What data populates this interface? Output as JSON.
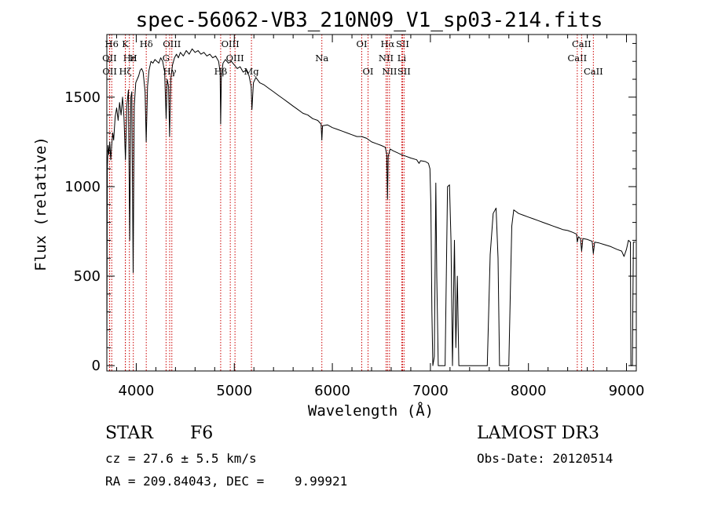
{
  "chart_data": {
    "type": "line",
    "title": "spec-56062-VB3_210N09_V1_sp03-214.fits",
    "xlabel": "Wavelength (Å)",
    "ylabel": "Flux (relative)",
    "xlim": [
      3700,
      9100
    ],
    "ylim": [
      -30,
      1850
    ],
    "x_ticks": [
      4000,
      5000,
      6000,
      7000,
      8000,
      9000
    ],
    "y_ticks": [
      0,
      500,
      1000,
      1500
    ],
    "series": [
      {
        "name": "flux",
        "color": "#000000",
        "points": [
          [
            3700,
            0
          ],
          [
            3705,
            1100
          ],
          [
            3712,
            1230
          ],
          [
            3720,
            1180
          ],
          [
            3730,
            1250
          ],
          [
            3740,
            1150
          ],
          [
            3750,
            1230
          ],
          [
            3760,
            1300
          ],
          [
            3770,
            1260
          ],
          [
            3785,
            1390
          ],
          [
            3800,
            1440
          ],
          [
            3815,
            1370
          ],
          [
            3830,
            1470
          ],
          [
            3845,
            1400
          ],
          [
            3860,
            1500
          ],
          [
            3875,
            1390
          ],
          [
            3890,
            1150
          ],
          [
            3905,
            1460
          ],
          [
            3920,
            1540
          ],
          [
            3933,
            700
          ],
          [
            3945,
            1500
          ],
          [
            3955,
            1530
          ],
          [
            3968,
            520
          ],
          [
            3980,
            1450
          ],
          [
            3995,
            1580
          ],
          [
            4010,
            1600
          ],
          [
            4025,
            1620
          ],
          [
            4040,
            1650
          ],
          [
            4055,
            1660
          ],
          [
            4070,
            1640
          ],
          [
            4090,
            1530
          ],
          [
            4101,
            1250
          ],
          [
            4115,
            1560
          ],
          [
            4130,
            1650
          ],
          [
            4150,
            1700
          ],
          [
            4170,
            1690
          ],
          [
            4190,
            1710
          ],
          [
            4210,
            1700
          ],
          [
            4230,
            1690
          ],
          [
            4250,
            1720
          ],
          [
            4270,
            1700
          ],
          [
            4290,
            1640
          ],
          [
            4305,
            1380
          ],
          [
            4315,
            1600
          ],
          [
            4330,
            1560
          ],
          [
            4340,
            1280
          ],
          [
            4352,
            1600
          ],
          [
            4370,
            1680
          ],
          [
            4390,
            1720
          ],
          [
            4410,
            1740
          ],
          [
            4430,
            1720
          ],
          [
            4450,
            1750
          ],
          [
            4480,
            1730
          ],
          [
            4510,
            1760
          ],
          [
            4540,
            1740
          ],
          [
            4570,
            1770
          ],
          [
            4600,
            1750
          ],
          [
            4630,
            1760
          ],
          [
            4660,
            1740
          ],
          [
            4690,
            1750
          ],
          [
            4720,
            1730
          ],
          [
            4750,
            1740
          ],
          [
            4780,
            1720
          ],
          [
            4810,
            1730
          ],
          [
            4840,
            1700
          ],
          [
            4855,
            1640
          ],
          [
            4861,
            1350
          ],
          [
            4868,
            1620
          ],
          [
            4885,
            1690
          ],
          [
            4910,
            1710
          ],
          [
            4940,
            1690
          ],
          [
            4970,
            1700
          ],
          [
            5000,
            1680
          ],
          [
            5030,
            1660
          ],
          [
            5060,
            1670
          ],
          [
            5090,
            1640
          ],
          [
            5120,
            1650
          ],
          [
            5150,
            1620
          ],
          [
            5172,
            1560
          ],
          [
            5180,
            1430
          ],
          [
            5195,
            1580
          ],
          [
            5220,
            1610
          ],
          [
            5260,
            1580
          ],
          [
            5300,
            1570
          ],
          [
            5350,
            1550
          ],
          [
            5400,
            1530
          ],
          [
            5450,
            1510
          ],
          [
            5500,
            1490
          ],
          [
            5550,
            1470
          ],
          [
            5600,
            1450
          ],
          [
            5650,
            1430
          ],
          [
            5700,
            1410
          ],
          [
            5750,
            1400
          ],
          [
            5800,
            1380
          ],
          [
            5850,
            1370
          ],
          [
            5885,
            1350
          ],
          [
            5893,
            1260
          ],
          [
            5900,
            1340
          ],
          [
            5950,
            1345
          ],
          [
            6000,
            1330
          ],
          [
            6050,
            1320
          ],
          [
            6100,
            1310
          ],
          [
            6150,
            1300
          ],
          [
            6200,
            1290
          ],
          [
            6250,
            1280
          ],
          [
            6300,
            1280
          ],
          [
            6350,
            1270
          ],
          [
            6400,
            1250
          ],
          [
            6450,
            1240
          ],
          [
            6500,
            1230
          ],
          [
            6540,
            1220
          ],
          [
            6555,
            1180
          ],
          [
            6563,
            930
          ],
          [
            6570,
            1170
          ],
          [
            6590,
            1210
          ],
          [
            6620,
            1200
          ],
          [
            6660,
            1190
          ],
          [
            6700,
            1180
          ],
          [
            6750,
            1170
          ],
          [
            6800,
            1160
          ],
          [
            6860,
            1150
          ],
          [
            6885,
            1130
          ],
          [
            6900,
            1145
          ],
          [
            6950,
            1140
          ],
          [
            6980,
            1130
          ],
          [
            6995,
            1100
          ],
          [
            7005,
            900
          ],
          [
            7015,
            300
          ],
          [
            7025,
            0
          ],
          [
            7040,
            50
          ],
          [
            7055,
            1020
          ],
          [
            7065,
            500
          ],
          [
            7080,
            0
          ],
          [
            7150,
            0
          ],
          [
            7175,
            1000
          ],
          [
            7195,
            1010
          ],
          [
            7210,
            700
          ],
          [
            7225,
            0
          ],
          [
            7245,
            700
          ],
          [
            7260,
            100
          ],
          [
            7275,
            500
          ],
          [
            7290,
            0
          ],
          [
            7300,
            0
          ],
          [
            7580,
            0
          ],
          [
            7610,
            620
          ],
          [
            7640,
            850
          ],
          [
            7670,
            880
          ],
          [
            7690,
            600
          ],
          [
            7705,
            0
          ],
          [
            7800,
            0
          ],
          [
            7815,
            400
          ],
          [
            7830,
            780
          ],
          [
            7850,
            870
          ],
          [
            7900,
            850
          ],
          [
            7950,
            840
          ],
          [
            8000,
            830
          ],
          [
            8050,
            820
          ],
          [
            8100,
            810
          ],
          [
            8150,
            800
          ],
          [
            8200,
            790
          ],
          [
            8250,
            780
          ],
          [
            8300,
            770
          ],
          [
            8350,
            760
          ],
          [
            8400,
            755
          ],
          [
            8450,
            745
          ],
          [
            8490,
            735
          ],
          [
            8498,
            690
          ],
          [
            8510,
            720
          ],
          [
            8530,
            710
          ],
          [
            8542,
            640
          ],
          [
            8555,
            710
          ],
          [
            8600,
            705
          ],
          [
            8650,
            695
          ],
          [
            8662,
            625
          ],
          [
            8675,
            690
          ],
          [
            8720,
            685
          ],
          [
            8780,
            675
          ],
          [
            8840,
            665
          ],
          [
            8900,
            650
          ],
          [
            8950,
            640
          ],
          [
            8975,
            610
          ],
          [
            9000,
            650
          ],
          [
            9020,
            700
          ],
          [
            9040,
            690
          ],
          [
            9045,
            0
          ],
          [
            9060,
            0
          ],
          [
            9070,
            690
          ],
          [
            9090,
            690
          ]
        ]
      }
    ],
    "line_markers": [
      {
        "name": "H6",
        "x": 3750,
        "row": 1
      },
      {
        "name": "OII",
        "x": 3727,
        "row": 2
      },
      {
        "name": "OII",
        "x": 3729,
        "row": 3
      },
      {
        "name": "K",
        "x": 3889,
        "row": 1
      },
      {
        "name": "H",
        "x": 3970,
        "row": 2
      },
      {
        "name": "Hε",
        "x": 3930,
        "row": 2
      },
      {
        "name": "Hζ",
        "x": 3889,
        "row": 3
      },
      {
        "name": "Hδ",
        "x": 4102,
        "row": 1
      },
      {
        "name": "G",
        "x": 4304,
        "row": 2
      },
      {
        "name": "OIII",
        "x": 4363,
        "row": 1
      },
      {
        "name": "Hγ",
        "x": 4341,
        "row": 3
      },
      {
        "name": "OIII",
        "x": 4959,
        "row": 1
      },
      {
        "name": "OIII",
        "x": 5007,
        "row": 2
      },
      {
        "name": "Hβ",
        "x": 4861,
        "row": 3
      },
      {
        "name": "Mg",
        "x": 5175,
        "row": 3
      },
      {
        "name": "Na",
        "x": 5893,
        "row": 2
      },
      {
        "name": "OI",
        "x": 6300,
        "row": 1
      },
      {
        "name": "OI",
        "x": 6364,
        "row": 3
      },
      {
        "name": "Hα",
        "x": 6563,
        "row": 1
      },
      {
        "name": "NII",
        "x": 6548,
        "row": 2
      },
      {
        "name": "NII",
        "x": 6583,
        "row": 3
      },
      {
        "name": "SII",
        "x": 6716,
        "row": 1
      },
      {
        "name": "Li",
        "x": 6708,
        "row": 2
      },
      {
        "name": "SII",
        "x": 6731,
        "row": 3
      },
      {
        "name": "CaII",
        "x": 8498,
        "row": 2
      },
      {
        "name": "CaII",
        "x": 8542,
        "row": 1
      },
      {
        "name": "CaII",
        "x": 8662,
        "row": 3
      }
    ]
  },
  "info": {
    "object_class": "STAR",
    "subclass": "F6",
    "redshift": "cz = 27.6 ± 5.5 km/s",
    "coords": "RA = 209.84043, DEC =    9.99921",
    "survey": "LAMOST DR3",
    "obs_date": "Obs-Date: 20120514"
  },
  "colors": {
    "marker_line": "#cc0000",
    "spectrum": "#000000"
  }
}
